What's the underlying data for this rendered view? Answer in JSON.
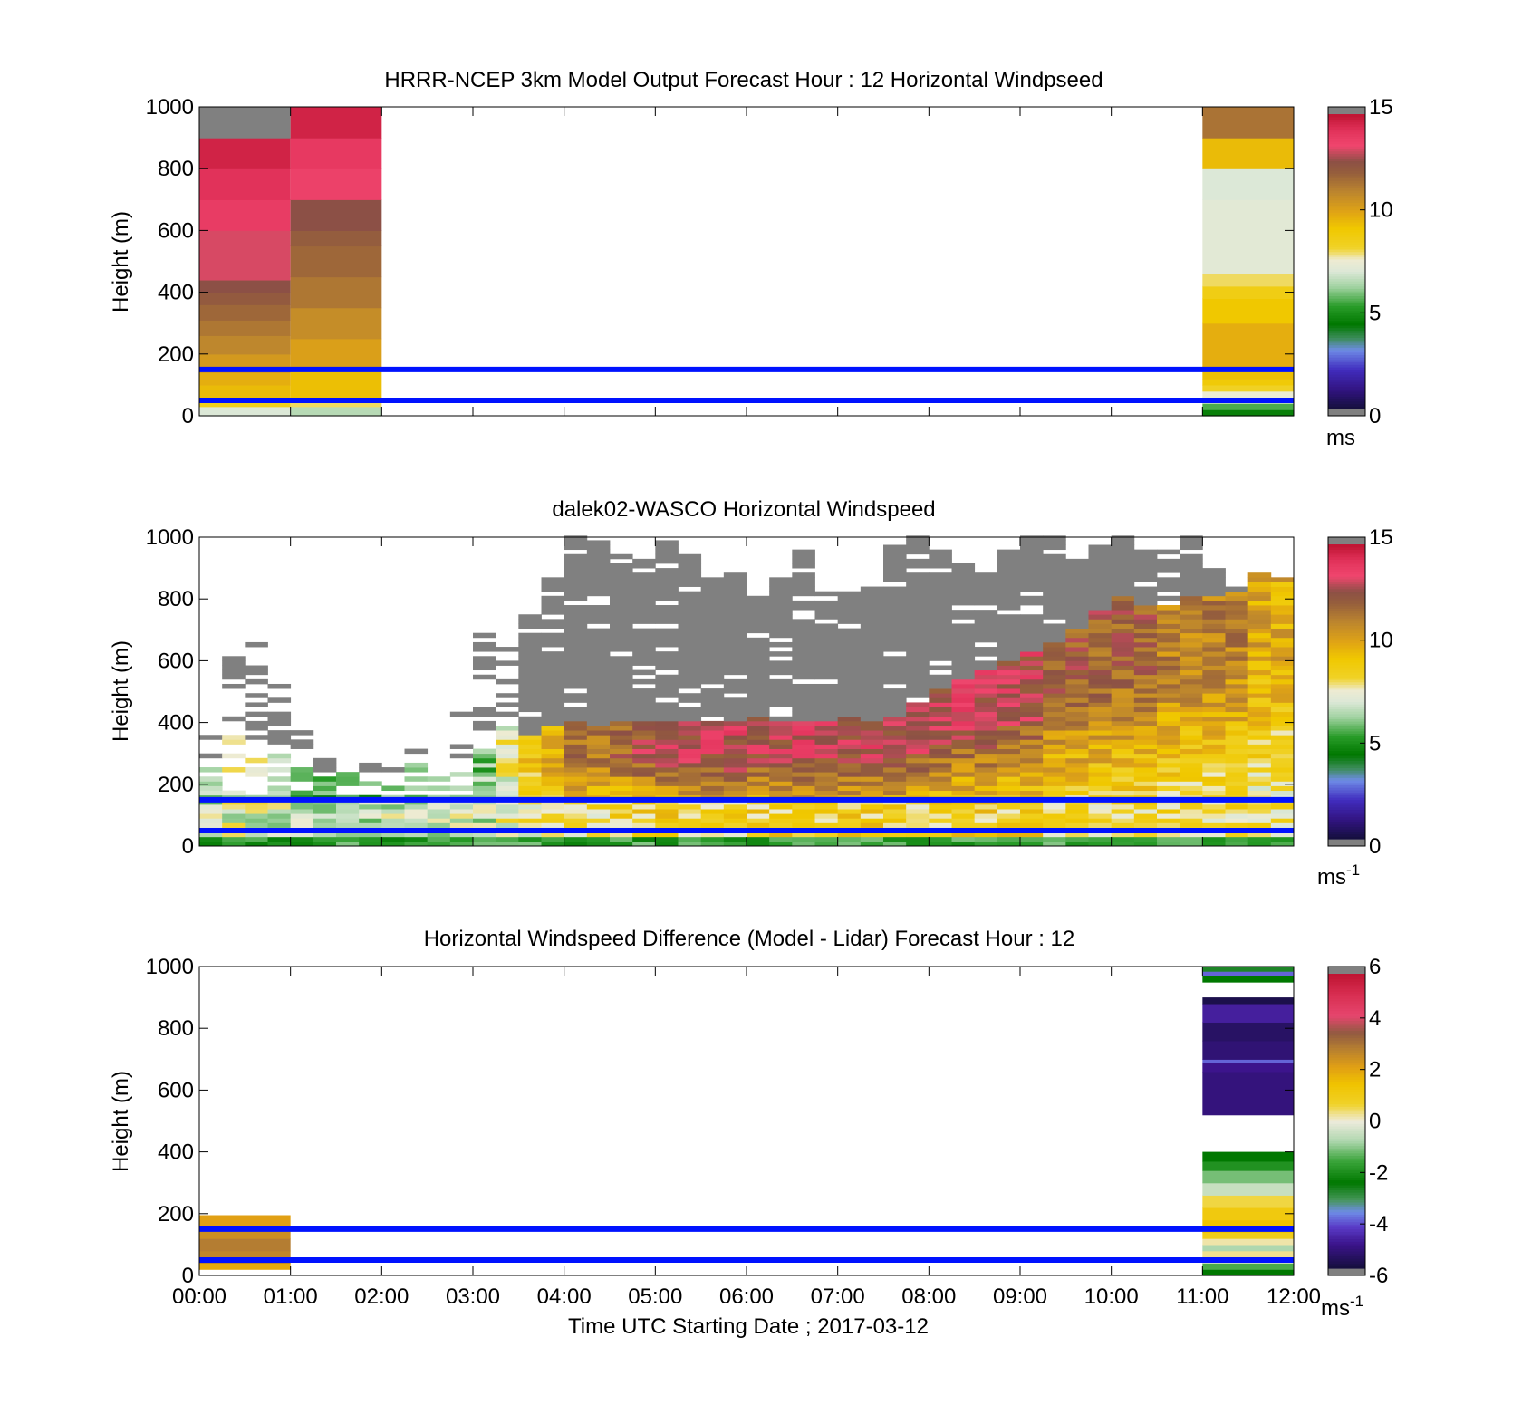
{
  "chart_data": [
    {
      "type": "heatmap",
      "title": "HRRR-NCEP 3km Model Output   Forecast Hour : 12 Horizontal Windpseed",
      "ylabel": "Height (m)",
      "ylim": [
        0,
        1000
      ],
      "yticks": [
        "0",
        "200",
        "400",
        "600",
        "800",
        "1000"
      ],
      "xlim": [
        "00:00",
        "12:00"
      ],
      "colorbar": {
        "min": 0,
        "max": 15,
        "ticks": [
          "0",
          "5",
          "10",
          "15"
        ],
        "unit": "ms"
      },
      "reference_lines_height_m": [
        50,
        150
      ],
      "columns": [
        {
          "t0": 0,
          "t1": 1,
          "cells": [
            {
              "h0": 0,
              "h1": 30,
              "v": 7
            },
            {
              "h0": 30,
              "h1": 60,
              "v": 8.5
            },
            {
              "h0": 60,
              "h1": 100,
              "v": 9.5
            },
            {
              "h0": 100,
              "h1": 140,
              "v": 9.8
            },
            {
              "h0": 140,
              "h1": 200,
              "v": 10.4
            },
            {
              "h0": 200,
              "h1": 260,
              "v": 11
            },
            {
              "h0": 260,
              "h1": 310,
              "v": 11.4
            },
            {
              "h0": 310,
              "h1": 360,
              "v": 11.8
            },
            {
              "h0": 360,
              "h1": 400,
              "v": 12.2
            },
            {
              "h0": 400,
              "h1": 440,
              "v": 12.6
            },
            {
              "h0": 440,
              "h1": 600,
              "v": 13.2
            },
            {
              "h0": 600,
              "h1": 700,
              "v": 13.8
            },
            {
              "h0": 700,
              "h1": 800,
              "v": 14.2
            },
            {
              "h0": 800,
              "h1": 900,
              "v": 14.6
            },
            {
              "h0": 900,
              "h1": 1000,
              "v": 15.5
            }
          ]
        },
        {
          "t0": 1,
          "t1": 2,
          "cells": [
            {
              "h0": 0,
              "h1": 30,
              "v": 6.5
            },
            {
              "h0": 30,
              "h1": 60,
              "v": 8
            },
            {
              "h0": 60,
              "h1": 160,
              "v": 9.4
            },
            {
              "h0": 160,
              "h1": 250,
              "v": 10.2
            },
            {
              "h0": 250,
              "h1": 350,
              "v": 10.8
            },
            {
              "h0": 350,
              "h1": 450,
              "v": 11.4
            },
            {
              "h0": 450,
              "h1": 550,
              "v": 11.8
            },
            {
              "h0": 550,
              "h1": 600,
              "v": 12.1
            },
            {
              "h0": 600,
              "h1": 700,
              "v": 12.6
            },
            {
              "h0": 700,
              "h1": 800,
              "v": 13.6
            },
            {
              "h0": 800,
              "h1": 900,
              "v": 13.9
            },
            {
              "h0": 900,
              "h1": 1000,
              "v": 14.6
            }
          ]
        },
        {
          "t0": 11,
          "t1": 12,
          "cells": [
            {
              "h0": 0,
              "h1": 20,
              "v": 4.5
            },
            {
              "h0": 20,
              "h1": 40,
              "v": 5.5
            },
            {
              "h0": 40,
              "h1": 60,
              "v": 6.5
            },
            {
              "h0": 60,
              "h1": 80,
              "v": 7.5
            },
            {
              "h0": 80,
              "h1": 100,
              "v": 8.3
            },
            {
              "h0": 100,
              "h1": 120,
              "v": 9
            },
            {
              "h0": 120,
              "h1": 160,
              "v": 9.4
            },
            {
              "h0": 160,
              "h1": 300,
              "v": 9.8
            },
            {
              "h0": 300,
              "h1": 380,
              "v": 9.2
            },
            {
              "h0": 380,
              "h1": 420,
              "v": 8.7
            },
            {
              "h0": 420,
              "h1": 460,
              "v": 8
            },
            {
              "h0": 460,
              "h1": 700,
              "v": 7.2
            },
            {
              "h0": 700,
              "h1": 800,
              "v": 7
            },
            {
              "h0": 800,
              "h1": 900,
              "v": 9.5
            },
            {
              "h0": 900,
              "h1": 1000,
              "v": 11.5
            }
          ]
        }
      ]
    },
    {
      "type": "heatmap",
      "title": "dalek02-WASCO  Horizontal Windspeed",
      "ylabel": "Height (m)",
      "ylim": [
        0,
        1000
      ],
      "yticks": [
        "0",
        "200",
        "400",
        "600",
        "800",
        "1000"
      ],
      "xlim": [
        "00:00",
        "12:00"
      ],
      "colorbar": {
        "min": 0,
        "max": 15,
        "ticks": [
          "0",
          "5",
          "10",
          "15"
        ],
        "unit": "ms",
        "unit_exp": "-1"
      },
      "reference_lines_height_m": [
        50,
        150
      ],
      "time_step_hours": 0.25,
      "num_profiles": 48,
      "profile_top_m": [
        350,
        610,
        650,
        600,
        420,
        290,
        260,
        300,
        270,
        330,
        240,
        450,
        680,
        640,
        760,
        860,
        1000,
        980,
        940,
        920,
        980,
        940,
        860,
        880,
        800,
        870,
        950,
        860,
        820,
        840,
        990,
        1000,
        960,
        910,
        880,
        960,
        1000,
        1000,
        930,
        980,
        1000,
        970,
        950,
        1000,
        890,
        850,
        880,
        870
      ],
      "peak_speed_ms": [
        6,
        7,
        7,
        6,
        5,
        5,
        5,
        5,
        5.5,
        5.5,
        6,
        6,
        6,
        7.5,
        9,
        10,
        11.5,
        11.5,
        12,
        12.5,
        13,
        13,
        13,
        13,
        13,
        13,
        13,
        13,
        13,
        13,
        13,
        13,
        13,
        13,
        13,
        13,
        13,
        12,
        12,
        12,
        12,
        12,
        11,
        11,
        11,
        11,
        10,
        10
      ],
      "rain_contaminated_above_m": [
        260,
        380,
        340,
        300,
        280,
        240,
        240,
        230,
        240,
        260,
        250,
        260,
        310,
        380,
        360,
        380,
        400,
        390,
        400,
        400,
        400,
        400,
        400,
        400,
        420,
        400,
        400,
        400,
        420,
        400,
        420,
        460,
        500,
        540,
        560,
        600,
        620,
        650,
        700,
        760,
        800,
        780,
        780,
        800,
        800,
        820,
        880,
        900
      ]
    },
    {
      "type": "heatmap",
      "title": "Horizontal Windspeed Difference (Model - Lidar) Forecast Hour : 12",
      "xlabel": "Time UTC  Starting Date ; 2017-03-12",
      "ylabel": "Height (m)",
      "ylim": [
        0,
        1000
      ],
      "yticks": [
        "0",
        "200",
        "400",
        "600",
        "800",
        "1000"
      ],
      "xticks": [
        "00:00",
        "01:00",
        "02:00",
        "03:00",
        "04:00",
        "05:00",
        "06:00",
        "07:00",
        "08:00",
        "09:00",
        "10:00",
        "11:00",
        "12:00"
      ],
      "xlim": [
        "00:00",
        "12:00"
      ],
      "colorbar": {
        "min": -6,
        "max": 6,
        "ticks": [
          "-6",
          "-4",
          "-2",
          "0",
          "2",
          "4",
          "6"
        ],
        "unit": "ms",
        "unit_exp": "-1"
      },
      "reference_lines_height_m": [
        50,
        150
      ],
      "columns": [
        {
          "t0": 0,
          "t1": 1,
          "cells": [
            {
              "h0": 20,
              "h1": 40,
              "v": 2
            },
            {
              "h0": 40,
              "h1": 80,
              "v": 2.8
            },
            {
              "h0": 80,
              "h1": 120,
              "v": 3
            },
            {
              "h0": 120,
              "h1": 160,
              "v": 2.6
            },
            {
              "h0": 160,
              "h1": 195,
              "v": 2.2
            }
          ]
        },
        {
          "t0": 11,
          "t1": 12,
          "cells": [
            {
              "h0": 0,
              "h1": 20,
              "v": -2.5
            },
            {
              "h0": 20,
              "h1": 40,
              "v": -1.5
            },
            {
              "h0": 40,
              "h1": 60,
              "v": -0.5
            },
            {
              "h0": 60,
              "h1": 80,
              "v": 0.3
            },
            {
              "h0": 80,
              "h1": 100,
              "v": -0.8
            },
            {
              "h0": 100,
              "h1": 120,
              "v": 0.2
            },
            {
              "h0": 120,
              "h1": 140,
              "v": 1
            },
            {
              "h0": 140,
              "h1": 180,
              "v": 1.5
            },
            {
              "h0": 180,
              "h1": 220,
              "v": 1.2
            },
            {
              "h0": 220,
              "h1": 260,
              "v": 0.6
            },
            {
              "h0": 260,
              "h1": 300,
              "v": -0.5
            },
            {
              "h0": 300,
              "h1": 340,
              "v": -1.2
            },
            {
              "h0": 340,
              "h1": 370,
              "v": -2
            },
            {
              "h0": 370,
              "h1": 400,
              "v": -2.5
            },
            {
              "h0": 520,
              "h1": 660,
              "v": -5.2
            },
            {
              "h0": 660,
              "h1": 690,
              "v": -5
            },
            {
              "h0": 690,
              "h1": 700,
              "v": -4
            },
            {
              "h0": 700,
              "h1": 760,
              "v": -5.3
            },
            {
              "h0": 760,
              "h1": 820,
              "v": -5.5
            },
            {
              "h0": 820,
              "h1": 880,
              "v": -4.8
            },
            {
              "h0": 880,
              "h1": 900,
              "v": -5.8
            },
            {
              "h0": 950,
              "h1": 970,
              "v": -2.5
            },
            {
              "h0": 970,
              "h1": 985,
              "v": -4
            },
            {
              "h0": 985,
              "h1": 1000,
              "v": -2.8
            }
          ]
        }
      ]
    }
  ]
}
